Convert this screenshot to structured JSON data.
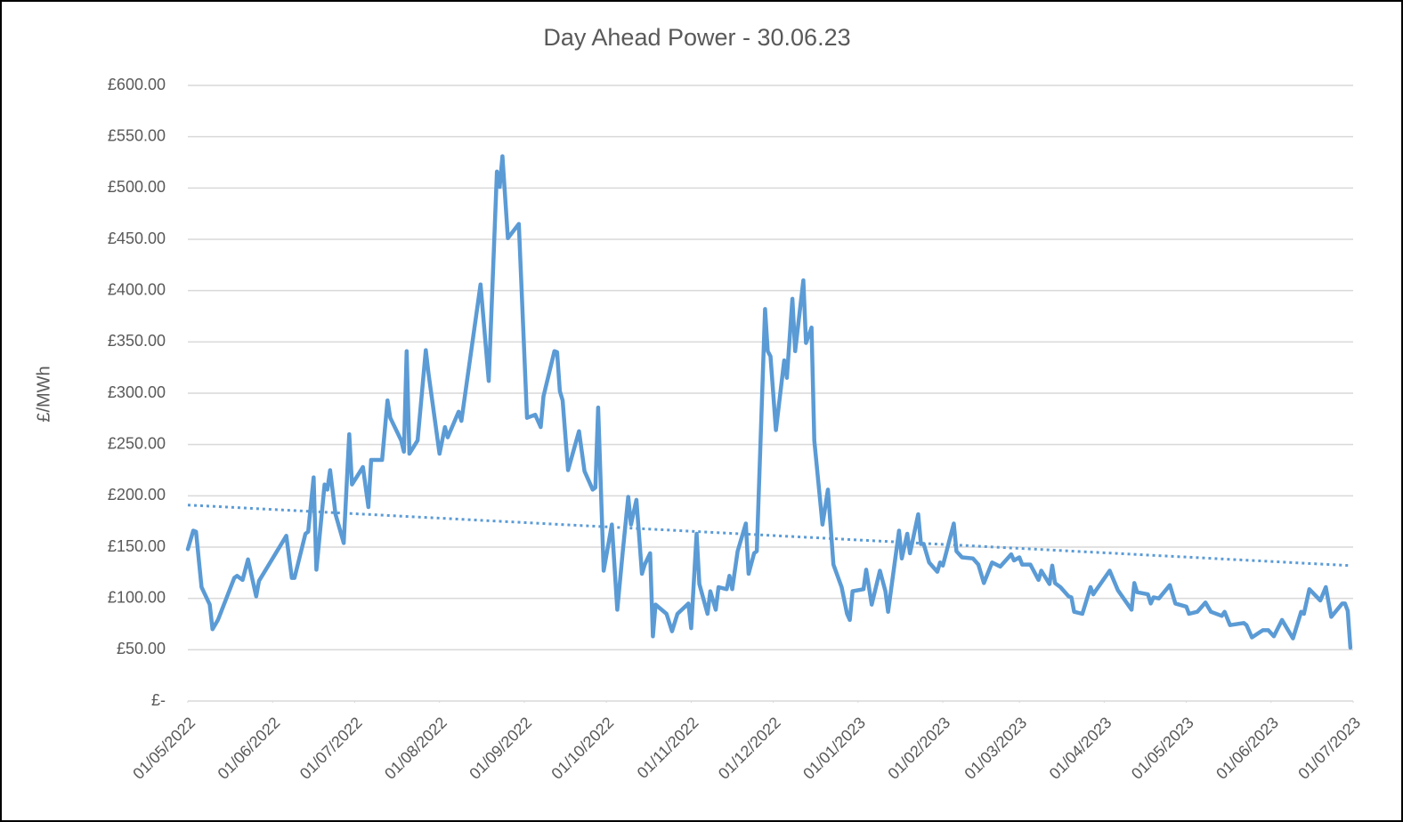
{
  "chart_data": {
    "type": "line",
    "title": "Day Ahead Power - 30.06.23",
    "y_label": "£/MWh",
    "x": [
      "2022-05-01",
      "2022-05-03",
      "2022-05-04",
      "2022-05-06",
      "2022-05-09",
      "2022-05-10",
      "2022-05-12",
      "2022-05-18",
      "2022-05-19",
      "2022-05-21",
      "2022-05-23",
      "2022-05-26",
      "2022-05-27",
      "2022-06-06",
      "2022-06-08",
      "2022-06-09",
      "2022-06-13",
      "2022-06-14",
      "2022-06-16",
      "2022-06-17",
      "2022-06-20",
      "2022-06-21",
      "2022-06-22",
      "2022-06-24",
      "2022-06-27",
      "2022-06-29",
      "2022-06-30",
      "2022-07-04",
      "2022-07-06",
      "2022-07-07",
      "2022-07-11",
      "2022-07-13",
      "2022-07-14",
      "2022-07-18",
      "2022-07-19",
      "2022-07-20",
      "2022-07-21",
      "2022-07-24",
      "2022-07-27",
      "2022-07-28",
      "2022-08-01",
      "2022-08-03",
      "2022-08-04",
      "2022-08-08",
      "2022-08-09",
      "2022-08-16",
      "2022-08-19",
      "2022-08-22",
      "2022-08-23",
      "2022-08-24",
      "2022-08-26",
      "2022-08-30",
      "2022-09-02",
      "2022-09-05",
      "2022-09-07",
      "2022-09-08",
      "2022-09-12",
      "2022-09-13",
      "2022-09-14",
      "2022-09-15",
      "2022-09-17",
      "2022-09-21",
      "2022-09-23",
      "2022-09-26",
      "2022-09-27",
      "2022-09-28",
      "2022-09-30",
      "2022-10-03",
      "2022-10-05",
      "2022-10-07",
      "2022-10-09",
      "2022-10-10",
      "2022-10-12",
      "2022-10-14",
      "2022-10-15",
      "2022-10-17",
      "2022-10-18",
      "2022-10-19",
      "2022-10-23",
      "2022-10-25",
      "2022-10-27",
      "2022-10-31",
      "2022-11-01",
      "2022-11-03",
      "2022-11-04",
      "2022-11-07",
      "2022-11-08",
      "2022-11-10",
      "2022-11-11",
      "2022-11-14",
      "2022-11-15",
      "2022-11-16",
      "2022-11-18",
      "2022-11-21",
      "2022-11-22",
      "2022-11-24",
      "2022-11-25",
      "2022-11-28",
      "2022-11-29",
      "2022-11-30",
      "2022-12-02",
      "2022-12-05",
      "2022-12-06",
      "2022-12-08",
      "2022-12-09",
      "2022-12-12",
      "2022-12-13",
      "2022-12-15",
      "2022-12-16",
      "2022-12-19",
      "2022-12-21",
      "2022-12-23",
      "2022-12-26",
      "2022-12-28",
      "2022-12-29",
      "2022-12-30",
      "2023-01-03",
      "2023-01-04",
      "2023-01-06",
      "2023-01-09",
      "2023-01-11",
      "2023-01-12",
      "2023-01-16",
      "2023-01-17",
      "2023-01-19",
      "2023-01-20",
      "2023-01-23",
      "2023-01-24",
      "2023-01-25",
      "2023-01-27",
      "2023-01-30",
      "2023-01-31",
      "2023-02-01",
      "2023-02-05",
      "2023-02-06",
      "2023-02-08",
      "2023-02-12",
      "2023-02-14",
      "2023-02-16",
      "2023-02-19",
      "2023-02-22",
      "2023-02-26",
      "2023-02-27",
      "2023-03-01",
      "2023-03-02",
      "2023-03-05",
      "2023-03-08",
      "2023-03-09",
      "2023-03-12",
      "2023-03-13",
      "2023-03-14",
      "2023-03-16",
      "2023-03-19",
      "2023-03-20",
      "2023-03-21",
      "2023-03-24",
      "2023-03-27",
      "2023-03-28",
      "2023-03-29",
      "2023-04-03",
      "2023-04-06",
      "2023-04-11",
      "2023-04-12",
      "2023-04-13",
      "2023-04-17",
      "2023-04-18",
      "2023-04-19",
      "2023-04-21",
      "2023-04-25",
      "2023-04-27",
      "2023-05-01",
      "2023-05-02",
      "2023-05-05",
      "2023-05-08",
      "2023-05-10",
      "2023-05-14",
      "2023-05-15",
      "2023-05-17",
      "2023-05-22",
      "2023-05-23",
      "2023-05-25",
      "2023-05-29",
      "2023-05-31",
      "2023-06-02",
      "2023-06-05",
      "2023-06-09",
      "2023-06-12",
      "2023-06-13",
      "2023-06-15",
      "2023-06-19",
      "2023-06-21",
      "2023-06-23",
      "2023-06-27",
      "2023-06-28",
      "2023-06-29",
      "2023-06-30"
    ],
    "values": [
      148,
      166,
      165,
      111,
      94,
      70,
      79,
      120,
      122,
      118,
      138,
      102,
      117,
      161,
      120,
      120,
      163,
      165,
      218,
      128,
      211,
      206,
      225,
      182,
      154,
      260,
      211,
      228,
      189,
      235,
      235,
      293,
      276,
      254,
      243,
      341,
      241,
      254,
      342,
      319,
      241,
      267,
      257,
      282,
      273,
      406,
      312,
      516,
      501,
      531,
      451,
      465,
      276,
      279,
      267,
      297,
      341,
      340,
      302,
      293,
      225,
      263,
      224,
      206,
      208,
      286,
      127,
      172,
      89,
      146,
      199,
      172,
      196,
      124,
      133,
      144,
      63,
      94,
      85,
      68,
      85,
      95,
      71,
      163,
      114,
      85,
      107,
      89,
      111,
      109,
      122,
      109,
      146,
      173,
      124,
      144,
      146,
      382,
      341,
      336,
      264,
      332,
      315,
      392,
      341,
      410,
      349,
      364,
      254,
      172,
      206,
      133,
      111,
      85,
      79,
      107,
      109,
      128,
      94,
      127,
      107,
      87,
      166,
      139,
      163,
      144,
      182,
      153,
      153,
      135,
      126,
      135,
      132,
      173,
      146,
      140,
      139,
      133,
      115,
      135,
      131,
      143,
      137,
      140,
      133,
      133,
      118,
      127,
      114,
      132,
      115,
      111,
      102,
      101,
      87,
      85,
      111,
      104,
      108,
      127,
      108,
      89,
      115,
      106,
      104,
      95,
      101,
      100,
      113,
      95,
      92,
      85,
      87,
      96,
      87,
      83,
      87,
      74,
      76,
      74,
      62,
      69,
      69,
      63,
      79,
      61,
      87,
      85,
      109,
      98,
      111,
      82,
      95,
      95,
      88,
      52
    ],
    "color": "#5b9bd5",
    "trendline": {
      "x": [
        "2022-05-01",
        "2023-06-30"
      ],
      "values": [
        191,
        132
      ],
      "color": "#5b9bd5",
      "style": "dotted"
    },
    "xlim": [
      "2022-05-01",
      "2023-07-01"
    ],
    "xticks": [
      {
        "value": "2022-05-01",
        "label": "01/05/2022"
      },
      {
        "value": "2022-06-01",
        "label": "01/06/2022"
      },
      {
        "value": "2022-07-01",
        "label": "01/07/2022"
      },
      {
        "value": "2022-08-01",
        "label": "01/08/2022"
      },
      {
        "value": "2022-09-01",
        "label": "01/09/2022"
      },
      {
        "value": "2022-10-01",
        "label": "01/10/2022"
      },
      {
        "value": "2022-11-01",
        "label": "01/11/2022"
      },
      {
        "value": "2022-12-01",
        "label": "01/12/2022"
      },
      {
        "value": "2023-01-01",
        "label": "01/01/2023"
      },
      {
        "value": "2023-02-01",
        "label": "01/02/2023"
      },
      {
        "value": "2023-03-01",
        "label": "01/03/2023"
      },
      {
        "value": "2023-04-01",
        "label": "01/04/2023"
      },
      {
        "value": "2023-05-01",
        "label": "01/05/2023"
      },
      {
        "value": "2023-06-01",
        "label": "01/06/2023"
      },
      {
        "value": "2023-07-01",
        "label": "01/07/2023"
      }
    ],
    "ylim": [
      0,
      600
    ],
    "yticks": [
      {
        "value": 0,
        "label": "£-"
      },
      {
        "value": 50,
        "label": "£50.00"
      },
      {
        "value": 100,
        "label": "£100.00"
      },
      {
        "value": 150,
        "label": "£150.00"
      },
      {
        "value": 200,
        "label": "£200.00"
      },
      {
        "value": 250,
        "label": "£250.00"
      },
      {
        "value": 300,
        "label": "£300.00"
      },
      {
        "value": 350,
        "label": "£350.00"
      },
      {
        "value": 400,
        "label": "£400.00"
      },
      {
        "value": 450,
        "label": "£450.00"
      },
      {
        "value": 500,
        "label": "£500.00"
      },
      {
        "value": 550,
        "label": "£550.00"
      },
      {
        "value": 600,
        "label": "£600.00"
      }
    ],
    "grid": true
  }
}
